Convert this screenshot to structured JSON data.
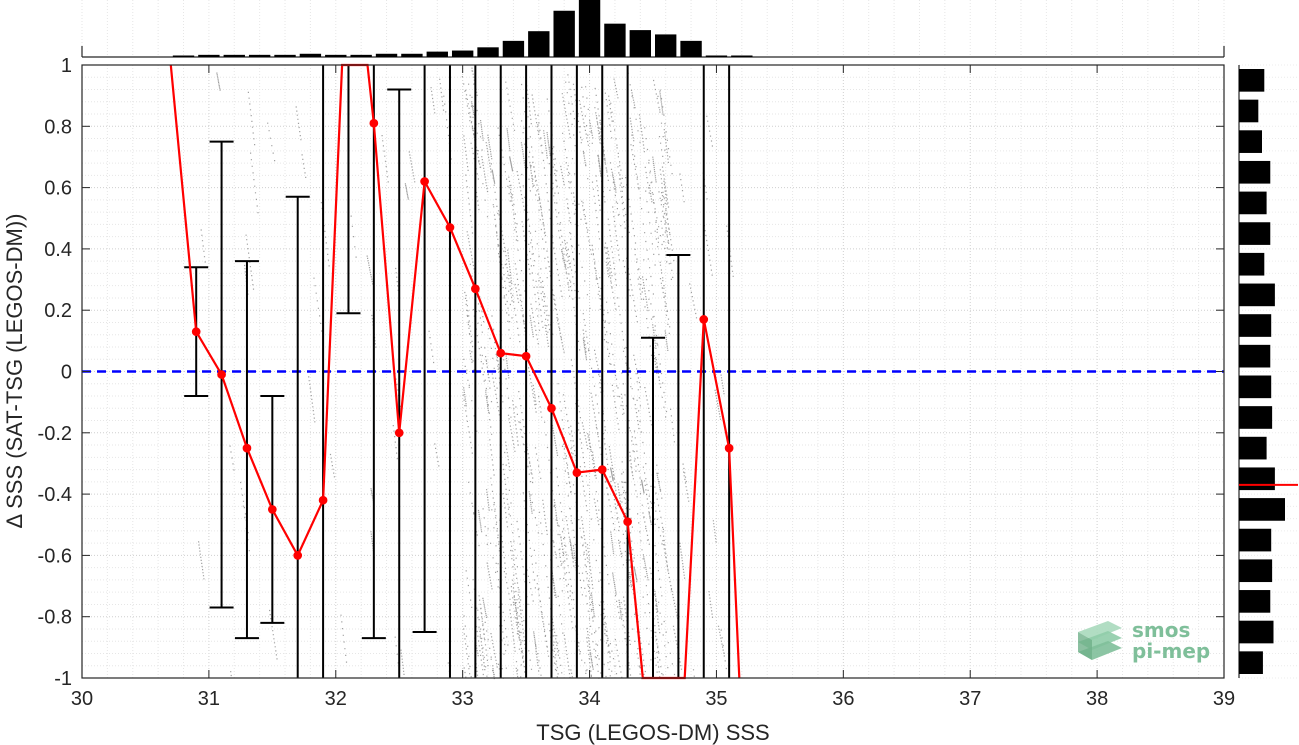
{
  "chart_data": {
    "type": "line",
    "xlabel": "TSG (LEGOS-DM) SSS",
    "ylabel": "Δ SSS (SAT-TSG (LEGOS-DM))",
    "xlim": [
      30,
      39
    ],
    "ylim": [
      -1,
      1
    ],
    "x_ticks": [
      "30",
      "31",
      "32",
      "33",
      "34",
      "35",
      "36",
      "37",
      "38",
      "39"
    ],
    "y_ticks": [
      "-1",
      "-0.8",
      "-0.6",
      "-0.4",
      "-0.2",
      "0",
      "0.2",
      "0.4",
      "0.6",
      "0.8",
      "1"
    ],
    "grid": true,
    "zero_line": {
      "y": 0,
      "color": "#0000ff",
      "style": "dashed"
    },
    "mean_curve": {
      "color": "#ff0000",
      "points": [
        {
          "x": 30.7,
          "y": 1.0
        },
        {
          "x": 30.9,
          "y": 0.13
        },
        {
          "x": 31.1,
          "y": -0.01
        },
        {
          "x": 31.3,
          "y": -0.25
        },
        {
          "x": 31.5,
          "y": -0.45
        },
        {
          "x": 31.7,
          "y": -0.6
        },
        {
          "x": 31.9,
          "y": -0.42
        },
        {
          "x": 32.05,
          "y": 1.0
        },
        {
          "x": 32.25,
          "y": 1.0
        },
        {
          "x": 32.3,
          "y": 0.81
        },
        {
          "x": 32.5,
          "y": -0.2
        },
        {
          "x": 32.7,
          "y": 0.62
        },
        {
          "x": 32.9,
          "y": 0.47
        },
        {
          "x": 33.1,
          "y": 0.27
        },
        {
          "x": 33.3,
          "y": 0.06
        },
        {
          "x": 33.5,
          "y": 0.05
        },
        {
          "x": 33.7,
          "y": -0.12
        },
        {
          "x": 33.9,
          "y": -0.33
        },
        {
          "x": 34.1,
          "y": -0.32
        },
        {
          "x": 34.3,
          "y": -0.49
        },
        {
          "x": 34.42,
          "y": -1.0
        },
        {
          "x": 34.75,
          "y": -1.0
        },
        {
          "x": 34.9,
          "y": 0.17
        },
        {
          "x": 35.1,
          "y": -0.25
        },
        {
          "x": 35.18,
          "y": -1.0
        }
      ],
      "markers": [
        {
          "x": 30.9,
          "y": 0.13
        },
        {
          "x": 31.1,
          "y": -0.01
        },
        {
          "x": 31.3,
          "y": -0.25
        },
        {
          "x": 31.5,
          "y": -0.45
        },
        {
          "x": 31.7,
          "y": -0.6
        },
        {
          "x": 31.9,
          "y": -0.42
        },
        {
          "x": 32.3,
          "y": 0.81
        },
        {
          "x": 32.5,
          "y": -0.2
        },
        {
          "x": 32.7,
          "y": 0.62
        },
        {
          "x": 32.9,
          "y": 0.47
        },
        {
          "x": 33.1,
          "y": 0.27
        },
        {
          "x": 33.3,
          "y": 0.06
        },
        {
          "x": 33.5,
          "y": 0.05
        },
        {
          "x": 33.7,
          "y": -0.12
        },
        {
          "x": 33.9,
          "y": -0.33
        },
        {
          "x": 34.1,
          "y": -0.32
        },
        {
          "x": 34.3,
          "y": -0.49
        },
        {
          "x": 34.9,
          "y": 0.17
        },
        {
          "x": 35.1,
          "y": -0.25
        }
      ]
    },
    "error_bars": [
      {
        "x": 30.9,
        "low": -0.08,
        "high": 0.34
      },
      {
        "x": 31.1,
        "low": -0.77,
        "high": 0.75
      },
      {
        "x": 31.3,
        "low": -0.87,
        "high": 0.36
      },
      {
        "x": 31.5,
        "low": -0.82,
        "high": -0.08
      },
      {
        "x": 31.7,
        "low": -1.0,
        "high": 0.57
      },
      {
        "x": 31.9,
        "low": -1.0,
        "high": 1.0
      },
      {
        "x": 32.1,
        "low": 0.19,
        "high": 1.0
      },
      {
        "x": 32.3,
        "low": -0.87,
        "high": 1.0
      },
      {
        "x": 32.5,
        "low": -1.0,
        "high": 0.92
      },
      {
        "x": 32.7,
        "low": -0.85,
        "high": 1.0
      },
      {
        "x": 32.9,
        "low": -1.0,
        "high": 1.0
      },
      {
        "x": 33.1,
        "low": -1.0,
        "high": 1.0
      },
      {
        "x": 33.3,
        "low": -1.0,
        "high": 1.0
      },
      {
        "x": 33.5,
        "low": -1.0,
        "high": 1.0
      },
      {
        "x": 33.7,
        "low": -1.0,
        "high": 1.0
      },
      {
        "x": 33.9,
        "low": -1.0,
        "high": 1.0
      },
      {
        "x": 34.1,
        "low": -1.0,
        "high": 1.0
      },
      {
        "x": 34.3,
        "low": -1.0,
        "high": 1.0
      },
      {
        "x": 34.5,
        "low": -1.0,
        "high": 0.11
      },
      {
        "x": 34.7,
        "low": -1.0,
        "high": 0.38
      },
      {
        "x": 34.9,
        "low": -1.0,
        "high": 1.0
      },
      {
        "x": 35.1,
        "low": -1.0,
        "high": 1.0
      }
    ],
    "scatter_cloud": {
      "color": "#808080",
      "x_range": [
        30.9,
        35.1
      ],
      "dense_x_range": [
        33.0,
        34.6
      ]
    },
    "top_histogram": {
      "bin_start": 30.7,
      "bin_width": 0.2,
      "counts": [
        0.01,
        0.02,
        0.02,
        0.02,
        0.02,
        0.03,
        0.02,
        0.02,
        0.03,
        0.03,
        0.05,
        0.06,
        0.09,
        0.15,
        0.24,
        0.43,
        0.53,
        0.31,
        0.25,
        0.21,
        0.15,
        0.01,
        0.01
      ]
    },
    "right_histogram": {
      "bin_values": [
        -0.95,
        -0.85,
        -0.75,
        -0.65,
        -0.55,
        -0.45,
        -0.35,
        -0.25,
        -0.15,
        -0.05,
        0.05,
        0.15,
        0.25,
        0.35,
        0.45,
        0.55,
        0.65,
        0.75,
        0.85,
        0.95
      ],
      "counts": [
        0.52,
        0.75,
        0.68,
        0.72,
        0.7,
        1.0,
        0.78,
        0.6,
        0.72,
        0.7,
        0.68,
        0.7,
        0.78,
        0.55,
        0.68,
        0.6,
        0.68,
        0.5,
        0.42,
        0.55
      ],
      "marker_y": -0.37,
      "marker_color": "#ff0000"
    }
  },
  "logo": {
    "line1": "smos",
    "line2": "pi-mep",
    "color": "#7fbf9a"
  }
}
